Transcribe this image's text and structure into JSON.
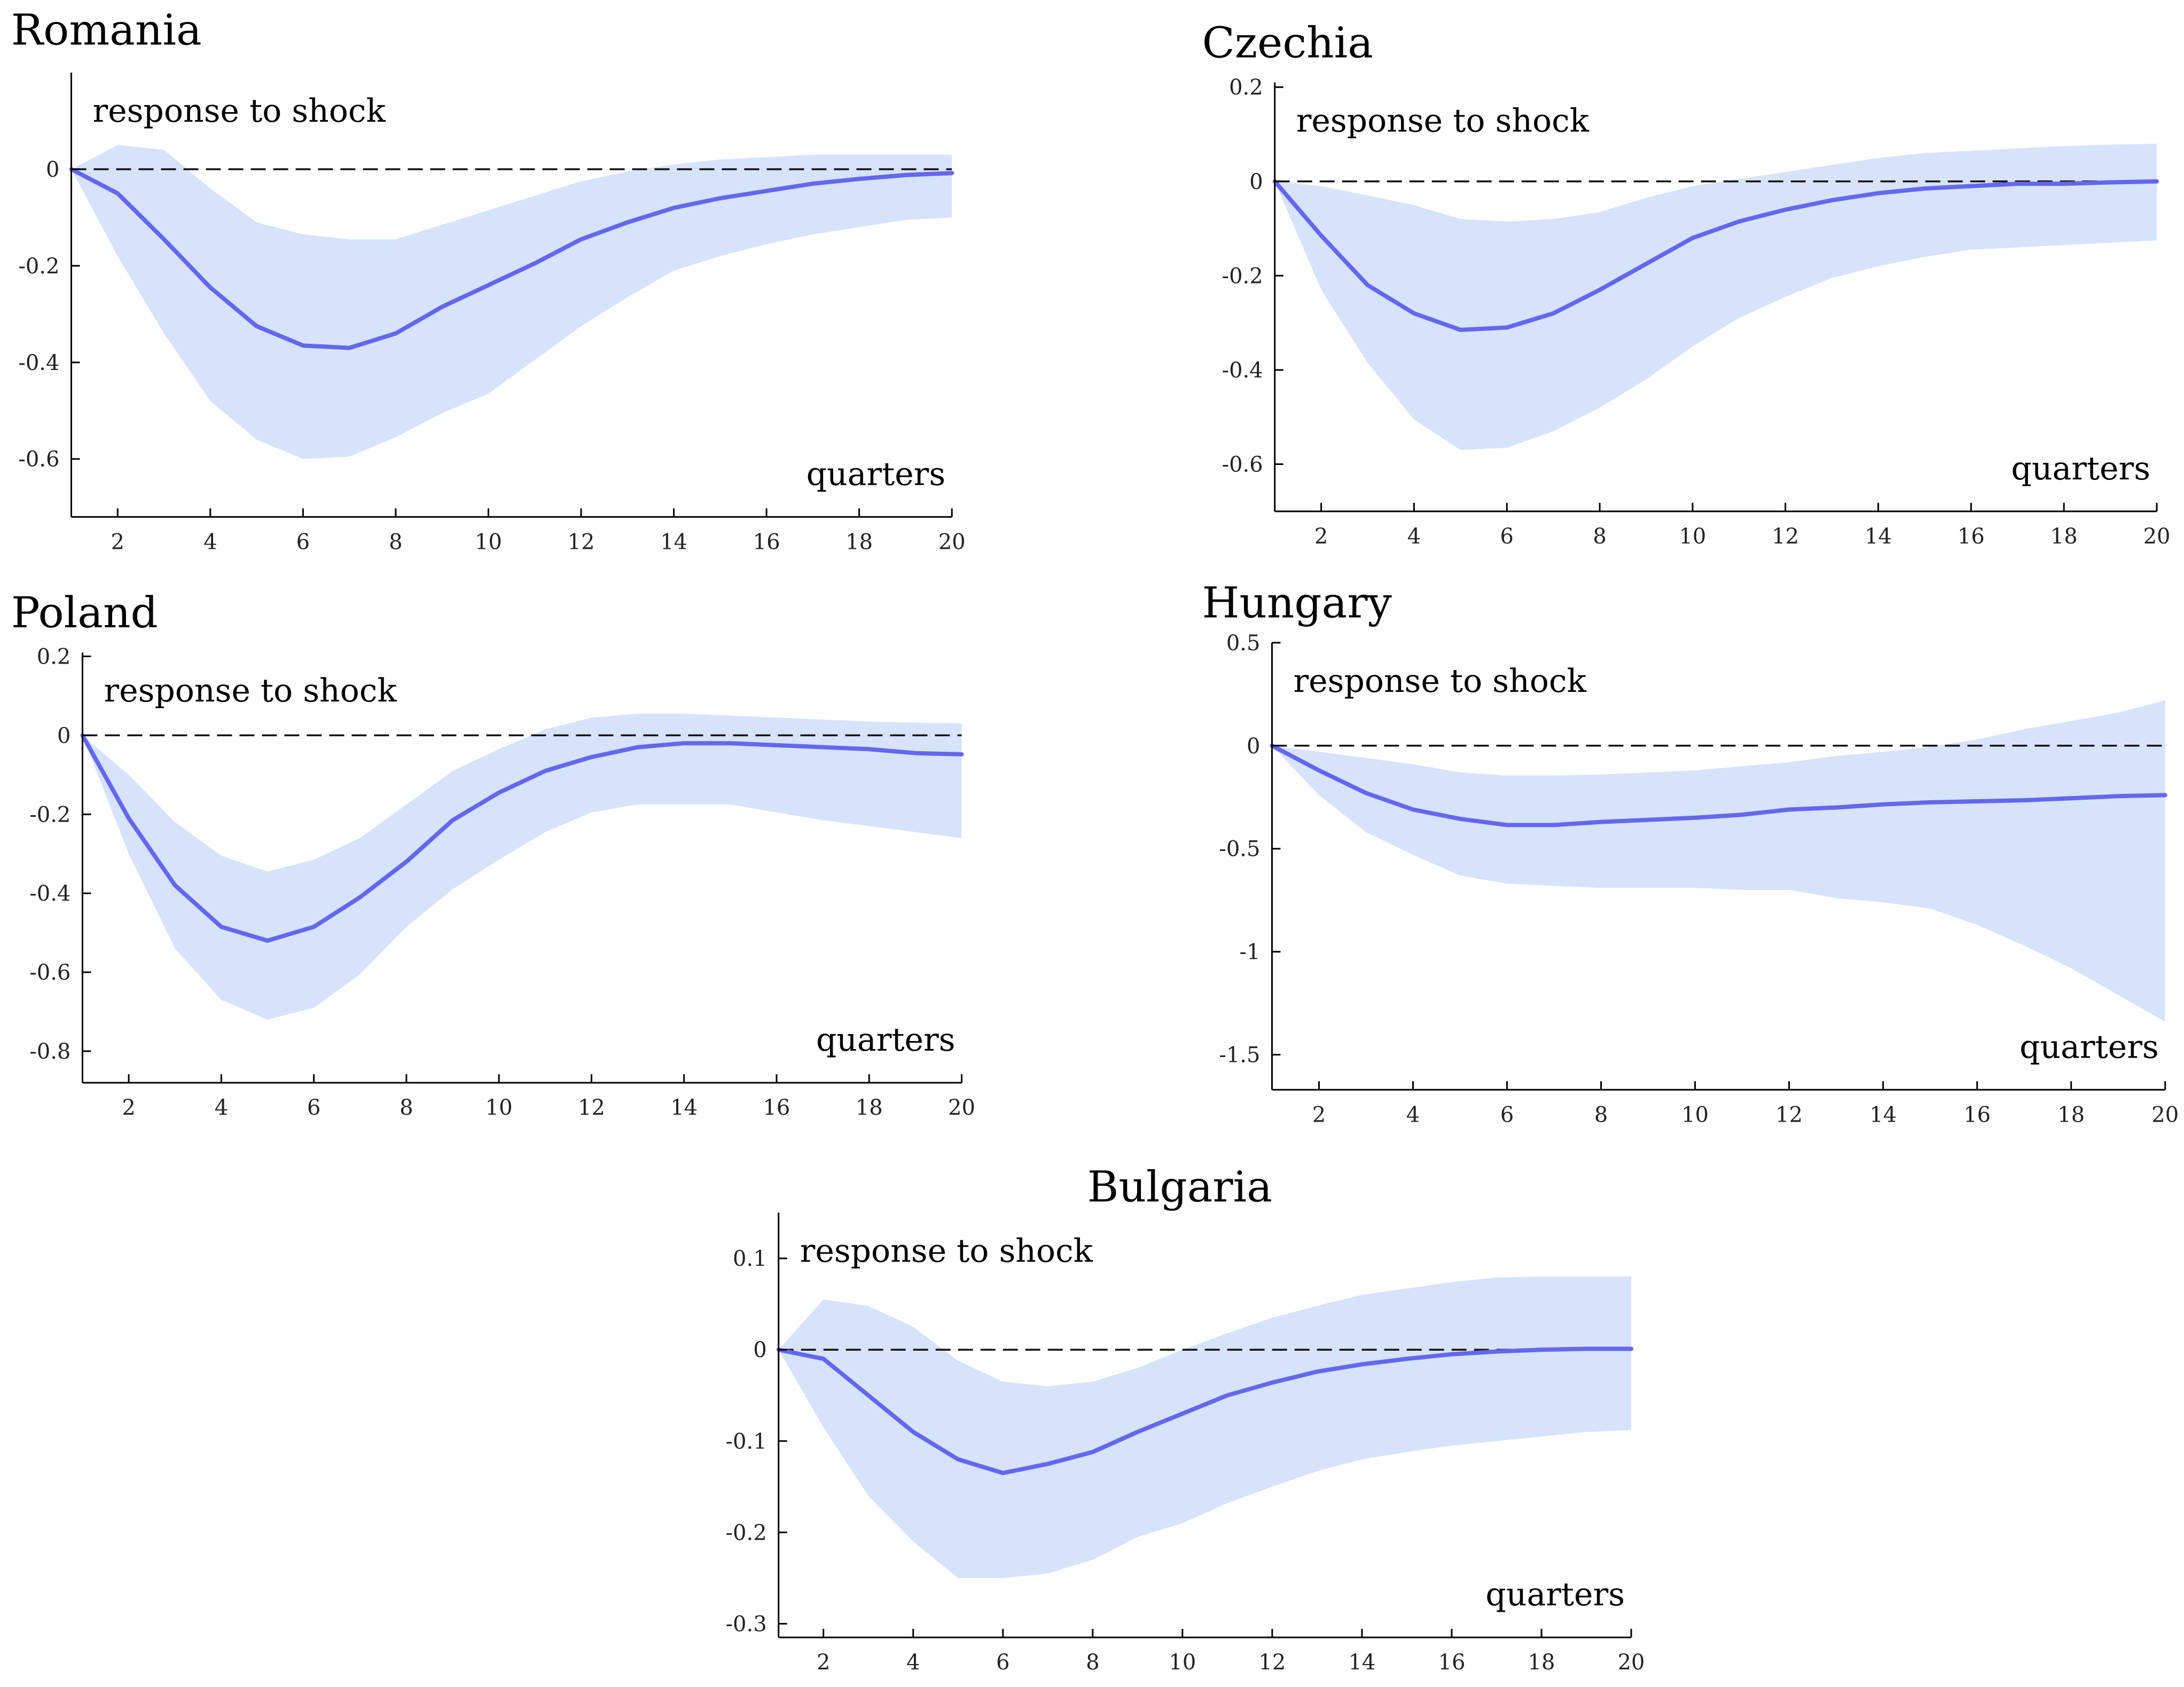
{
  "colors": {
    "band": "#d6e3fb",
    "line": "#6666ee",
    "zero_line": "#111111",
    "axis": "#000000"
  },
  "chart_data": [
    {
      "type": "area",
      "title": "Romania",
      "annotation": "response to shock",
      "xlabel": "quarters",
      "ylabel": "",
      "xlim": [
        1,
        20
      ],
      "ylim": [
        -0.72,
        0.2
      ],
      "x_ticks": [
        2,
        4,
        6,
        8,
        10,
        12,
        14,
        16,
        18,
        20
      ],
      "y_ticks": [
        0,
        -0.2,
        -0.4,
        -0.6
      ],
      "y_tick_labels": [
        "0",
        "-0.2",
        "-0.4",
        "-0.6"
      ],
      "x": [
        1,
        2,
        3,
        4,
        5,
        6,
        7,
        8,
        9,
        10,
        11,
        12,
        13,
        14,
        15,
        16,
        17,
        18,
        19,
        20
      ],
      "series": [
        {
          "name": "response",
          "values": [
            0,
            -0.05,
            -0.145,
            -0.245,
            -0.325,
            -0.365,
            -0.37,
            -0.34,
            -0.285,
            -0.24,
            -0.195,
            -0.145,
            -0.11,
            -0.08,
            -0.06,
            -0.045,
            -0.03,
            -0.02,
            -0.012,
            -0.008
          ]
        },
        {
          "name": "upper",
          "values": [
            0,
            0.05,
            0.04,
            -0.04,
            -0.11,
            -0.135,
            -0.145,
            -0.145,
            -0.115,
            -0.085,
            -0.055,
            -0.025,
            -0.005,
            0.01,
            0.02,
            0.025,
            0.03,
            0.03,
            0.03,
            0.03
          ]
        },
        {
          "name": "lower",
          "values": [
            0,
            -0.18,
            -0.34,
            -0.48,
            -0.56,
            -0.6,
            -0.595,
            -0.555,
            -0.505,
            -0.465,
            -0.395,
            -0.325,
            -0.265,
            -0.21,
            -0.18,
            -0.155,
            -0.135,
            -0.12,
            -0.105,
            -0.1
          ]
        }
      ]
    },
    {
      "type": "area",
      "title": "Czechia",
      "annotation": "response to shock",
      "xlabel": "quarters",
      "ylabel": "",
      "xlim": [
        1,
        20
      ],
      "ylim": [
        -0.7,
        0.21
      ],
      "x_ticks": [
        2,
        4,
        6,
        8,
        10,
        12,
        14,
        16,
        18,
        20
      ],
      "y_ticks": [
        0.2,
        0,
        -0.2,
        -0.4,
        -0.6
      ],
      "y_tick_labels": [
        "0.2",
        "0",
        "-0.2",
        "-0.4",
        "-0.6"
      ],
      "x": [
        1,
        2,
        3,
        4,
        5,
        6,
        7,
        8,
        9,
        10,
        11,
        12,
        13,
        14,
        15,
        16,
        17,
        18,
        19,
        20
      ],
      "series": [
        {
          "name": "response",
          "values": [
            0,
            -0.115,
            -0.22,
            -0.28,
            -0.315,
            -0.31,
            -0.28,
            -0.23,
            -0.175,
            -0.12,
            -0.085,
            -0.06,
            -0.04,
            -0.025,
            -0.015,
            -0.01,
            -0.005,
            -0.005,
            -0.002,
            0
          ]
        },
        {
          "name": "upper",
          "values": [
            0,
            -0.01,
            -0.03,
            -0.05,
            -0.08,
            -0.085,
            -0.08,
            -0.065,
            -0.035,
            -0.01,
            0.005,
            0.02,
            0.035,
            0.05,
            0.06,
            0.065,
            0.07,
            0.075,
            0.078,
            0.08
          ]
        },
        {
          "name": "lower",
          "values": [
            0,
            -0.23,
            -0.385,
            -0.505,
            -0.57,
            -0.565,
            -0.53,
            -0.48,
            -0.42,
            -0.35,
            -0.29,
            -0.245,
            -0.205,
            -0.18,
            -0.16,
            -0.145,
            -0.14,
            -0.135,
            -0.13,
            -0.125
          ]
        }
      ]
    },
    {
      "type": "area",
      "title": "Poland",
      "annotation": "response to shock",
      "xlabel": "quarters",
      "ylabel": "",
      "xlim": [
        1,
        20
      ],
      "ylim": [
        -0.88,
        0.21
      ],
      "x_ticks": [
        2,
        4,
        6,
        8,
        10,
        12,
        14,
        16,
        18,
        20
      ],
      "y_ticks": [
        0.2,
        0,
        -0.2,
        -0.4,
        -0.6,
        -0.8
      ],
      "y_tick_labels": [
        "0.2",
        "0",
        "-0.2",
        "-0.4",
        "-0.6",
        "-0.8"
      ],
      "x": [
        1,
        2,
        3,
        4,
        5,
        6,
        7,
        8,
        9,
        10,
        11,
        12,
        13,
        14,
        15,
        16,
        17,
        18,
        19,
        20
      ],
      "series": [
        {
          "name": "response",
          "values": [
            0,
            -0.21,
            -0.38,
            -0.485,
            -0.52,
            -0.485,
            -0.41,
            -0.32,
            -0.215,
            -0.145,
            -0.09,
            -0.055,
            -0.03,
            -0.02,
            -0.02,
            -0.025,
            -0.03,
            -0.035,
            -0.045,
            -0.048
          ]
        },
        {
          "name": "upper",
          "values": [
            0,
            -0.1,
            -0.22,
            -0.305,
            -0.345,
            -0.315,
            -0.26,
            -0.175,
            -0.09,
            -0.035,
            0.015,
            0.045,
            0.055,
            0.055,
            0.05,
            0.045,
            0.04,
            0.035,
            0.032,
            0.03
          ]
        },
        {
          "name": "lower",
          "values": [
            0,
            -0.3,
            -0.54,
            -0.67,
            -0.72,
            -0.69,
            -0.605,
            -0.485,
            -0.39,
            -0.315,
            -0.245,
            -0.195,
            -0.175,
            -0.175,
            -0.175,
            -0.195,
            -0.215,
            -0.23,
            -0.245,
            -0.26
          ]
        }
      ]
    },
    {
      "type": "area",
      "title": "Hungary",
      "annotation": "response to shock",
      "xlabel": "quarters",
      "ylabel": "",
      "xlim": [
        1,
        20
      ],
      "ylim": [
        -1.67,
        0.5
      ],
      "x_ticks": [
        2,
        4,
        6,
        8,
        10,
        12,
        14,
        16,
        18,
        20
      ],
      "y_ticks": [
        0.5,
        0,
        -0.5,
        -1,
        -1.5
      ],
      "y_tick_labels": [
        "0.5",
        "0",
        "-0.5",
        "-1",
        "-1.5"
      ],
      "x": [
        1,
        2,
        3,
        4,
        5,
        6,
        7,
        8,
        9,
        10,
        11,
        12,
        13,
        14,
        15,
        16,
        17,
        18,
        19,
        20
      ],
      "series": [
        {
          "name": "response",
          "values": [
            0,
            -0.12,
            -0.23,
            -0.31,
            -0.355,
            -0.385,
            -0.385,
            -0.37,
            -0.36,
            -0.35,
            -0.335,
            -0.31,
            -0.3,
            -0.285,
            -0.275,
            -0.27,
            -0.265,
            -0.255,
            -0.245,
            -0.24
          ]
        },
        {
          "name": "upper",
          "values": [
            0,
            -0.03,
            -0.06,
            -0.09,
            -0.13,
            -0.145,
            -0.145,
            -0.14,
            -0.13,
            -0.12,
            -0.1,
            -0.08,
            -0.05,
            -0.03,
            -0.005,
            0.03,
            0.08,
            0.12,
            0.16,
            0.22
          ]
        },
        {
          "name": "lower",
          "values": [
            0,
            -0.24,
            -0.42,
            -0.53,
            -0.63,
            -0.67,
            -0.68,
            -0.69,
            -0.69,
            -0.69,
            -0.7,
            -0.7,
            -0.74,
            -0.76,
            -0.79,
            -0.87,
            -0.97,
            -1.08,
            -1.21,
            -1.34
          ]
        }
      ]
    },
    {
      "type": "area",
      "title": "Bulgaria",
      "annotation": "response to shock",
      "xlabel": "quarters",
      "ylabel": "",
      "xlim": [
        1,
        20
      ],
      "ylim": [
        -0.315,
        0.15
      ],
      "x_ticks": [
        2,
        4,
        6,
        8,
        10,
        12,
        14,
        16,
        18,
        20
      ],
      "y_ticks": [
        0.1,
        0,
        -0.1,
        -0.2,
        -0.3
      ],
      "y_tick_labels": [
        "0.1",
        "0",
        "-0.1",
        "-0.2",
        "-0.3"
      ],
      "x": [
        1,
        2,
        3,
        4,
        5,
        6,
        7,
        8,
        9,
        10,
        11,
        12,
        13,
        14,
        15,
        16,
        17,
        18,
        19,
        20
      ],
      "series": [
        {
          "name": "response",
          "values": [
            0,
            -0.01,
            -0.05,
            -0.09,
            -0.12,
            -0.135,
            -0.125,
            -0.112,
            -0.09,
            -0.07,
            -0.05,
            -0.036,
            -0.024,
            -0.016,
            -0.01,
            -0.005,
            -0.002,
            0,
            0.001,
            0.001
          ]
        },
        {
          "name": "upper",
          "values": [
            0,
            0.055,
            0.048,
            0.025,
            -0.012,
            -0.035,
            -0.04,
            -0.035,
            -0.02,
            0,
            0.018,
            0.035,
            0.048,
            0.06,
            0.067,
            0.074,
            0.079,
            0.08,
            0.08,
            0.08
          ]
        },
        {
          "name": "lower",
          "values": [
            0,
            -0.085,
            -0.16,
            -0.21,
            -0.25,
            -0.25,
            -0.245,
            -0.23,
            -0.205,
            -0.19,
            -0.168,
            -0.15,
            -0.133,
            -0.12,
            -0.112,
            -0.105,
            -0.1,
            -0.095,
            -0.09,
            -0.088
          ]
        }
      ]
    }
  ]
}
